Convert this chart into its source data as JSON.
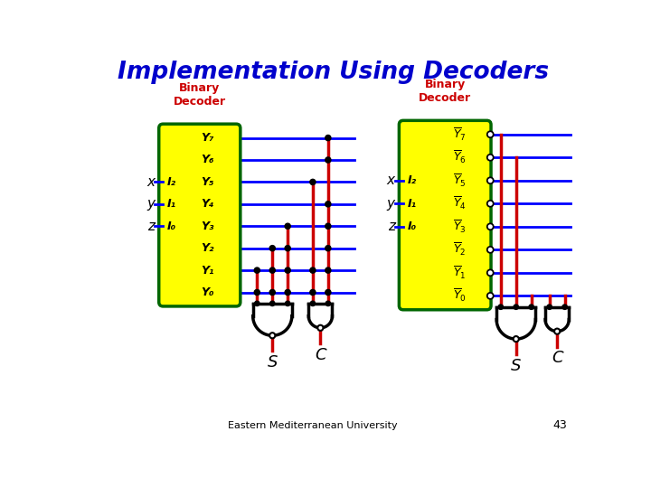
{
  "title": "Implementation Using Decoders",
  "title_color": "#0000CC",
  "title_fontsize": 19,
  "bg_color": "#FFFFFF",
  "footer": "Eastern Mediterranean University",
  "page_num": "43",
  "decoder_label": "Binary\nDecoder",
  "decoder_label_color": "#CC0000",
  "decoder_box_color": "#FFFF00",
  "decoder_box_edge": "#006600",
  "inputs": [
    "I₂",
    "I₁",
    "I₀"
  ],
  "input_labels": [
    "x",
    "y",
    "z"
  ],
  "blue_line_color": "#0000FF",
  "red_line_color": "#CC0000",
  "dot_color": "#000000",
  "left_red_starts": [
    [
      390,
      390,
      390,
      390,
      390,
      390,
      390,
      390
    ],
    [
      390,
      390,
      390,
      390,
      390,
      390,
      390,
      390
    ],
    [
      390,
      390,
      390,
      390,
      390,
      390,
      390,
      390
    ],
    [
      390,
      390,
      390,
      390,
      390,
      390,
      390,
      390
    ]
  ],
  "left_dots": [
    [
      0,
      0,
      0,
      0,
      0,
      0,
      0,
      1
    ],
    [
      0,
      0,
      0,
      0,
      0,
      1,
      0,
      1
    ],
    [
      0,
      0,
      0,
      1,
      0,
      0,
      1,
      1
    ],
    [
      0,
      1,
      0,
      0,
      1,
      0,
      1,
      1
    ]
  ],
  "right_dots": [
    [
      1,
      1,
      1,
      0,
      1,
      1,
      1,
      0
    ],
    [
      1,
      0,
      1,
      1,
      0,
      1,
      0,
      1
    ],
    [
      0,
      0,
      0,
      0,
      0,
      0,
      0,
      0
    ],
    [
      0,
      0,
      0,
      0,
      0,
      0,
      0,
      0
    ]
  ]
}
